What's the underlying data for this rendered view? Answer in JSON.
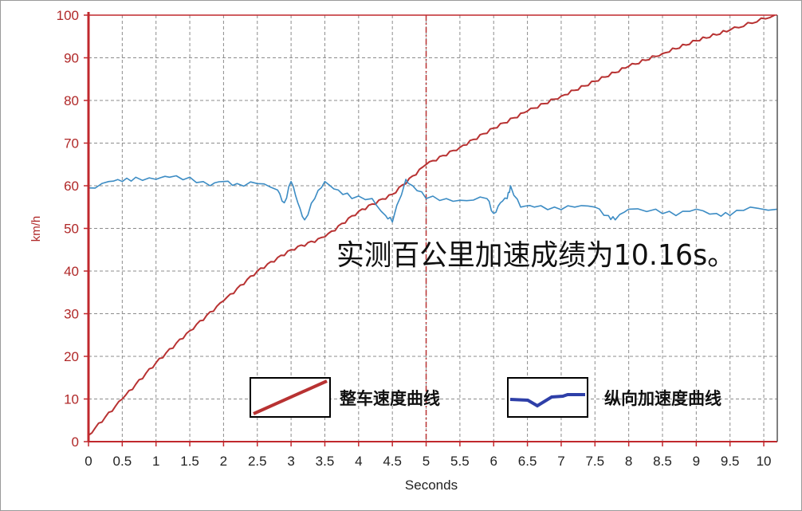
{
  "chart_data": {
    "type": "line",
    "xlabel": "Seconds",
    "ylabel": "km/h",
    "xlim": [
      0,
      10.2
    ],
    "ylim": [
      0,
      100
    ],
    "x_ticks": [
      "0",
      "0.5",
      "1",
      "1.5",
      "2",
      "2.5",
      "3",
      "3.5",
      "4",
      "4.5",
      "5",
      "5.5",
      "6",
      "6.5",
      "7",
      "7.5",
      "8",
      "8.5",
      "9",
      "9.5",
      "10"
    ],
    "y_ticks": [
      "0",
      "10",
      "20",
      "30",
      "40",
      "50",
      "60",
      "70",
      "80",
      "90",
      "100"
    ],
    "grid": true,
    "marker_line_x": 5,
    "annotation": "实测百公里加速成绩为10.16s。",
    "colors": {
      "speed": "#b83232",
      "accel": "#3c8cc4",
      "axis": "#c0282d",
      "grid": "#8c8c8c"
    },
    "series": [
      {
        "name": "整车速度曲线",
        "x": [
          0,
          0.5,
          1,
          1.5,
          2,
          2.5,
          3,
          3.5,
          4,
          4.5,
          5,
          5.5,
          6,
          6.5,
          7,
          7.5,
          8,
          8.5,
          9,
          9.5,
          10.16
        ],
        "values": [
          1.5,
          10,
          18.5,
          26,
          33,
          40,
          45,
          48,
          54,
          58,
          65,
          69,
          73.5,
          77.5,
          81,
          84.5,
          88,
          91,
          94,
          96.5,
          100
        ]
      },
      {
        "name": "纵向加速度曲线",
        "x": [
          0,
          0.3,
          0.5,
          0.7,
          1,
          1.2,
          1.5,
          1.8,
          2,
          2.2,
          2.5,
          2.8,
          2.9,
          3,
          3.1,
          3.2,
          3.35,
          3.5,
          3.7,
          3.9,
          4.2,
          4.4,
          4.5,
          4.7,
          4.8,
          5,
          5.3,
          5.6,
          5.9,
          6.0,
          6.1,
          6.2,
          6.25,
          6.4,
          6.6,
          6.9,
          7.2,
          7.5,
          7.7,
          7.8,
          8.0,
          8.4,
          8.7,
          9.0,
          9.3,
          9.5,
          9.8,
          10.2
        ],
        "values": [
          59.5,
          61,
          61,
          62,
          61.5,
          62,
          62,
          60,
          61,
          60.5,
          60.5,
          59,
          56,
          61,
          56,
          52,
          57,
          61,
          59,
          57,
          57,
          53,
          51.5,
          61.5,
          60,
          57,
          57,
          56.5,
          57,
          53.5,
          56,
          57,
          60,
          55,
          55,
          55,
          55,
          55,
          53,
          52,
          54.5,
          54.5,
          53,
          54.5,
          53.5,
          53,
          55,
          54.5
        ]
      }
    ],
    "legend": [
      {
        "label": "整车速度曲线",
        "color": "#b83232"
      },
      {
        "label": "纵向加速度曲线",
        "color": "#2e3fa8"
      }
    ]
  }
}
